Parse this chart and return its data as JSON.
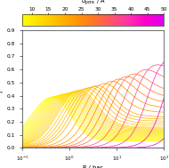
{
  "colorbar_label": "d_{pore} / Å",
  "colorbar_ticks": [
    10,
    15,
    20,
    25,
    30,
    35,
    40,
    45,
    50
  ],
  "xlabel": "P / bar",
  "ylabel": "f °",
  "xlim": [
    0.1,
    100
  ],
  "ylim": [
    0.0,
    0.9
  ],
  "yticks": [
    0.0,
    0.1,
    0.2,
    0.3,
    0.4,
    0.5,
    0.6,
    0.7,
    0.8,
    0.9
  ],
  "d_min": 7.0,
  "d_max": 50.0,
  "pore_sizes": [
    7.0,
    7.5,
    8.0,
    8.5,
    9.0,
    9.5,
    10.0,
    10.5,
    11.0,
    11.5,
    12.0,
    12.5,
    13.0,
    13.5,
    14.0,
    14.5,
    15.0,
    16.0,
    17.0,
    18.0,
    19.0,
    20.0,
    22.0,
    24.0,
    26.0,
    28.0,
    30.0,
    33.0,
    36.0,
    40.0,
    45.0,
    50.0
  ],
  "cmap_colors": [
    "#ffff00",
    "#ffdd00",
    "#ffbb00",
    "#ff9900",
    "#ff7722",
    "#ff5566",
    "#ff33aa",
    "#ff00cc",
    "#dd00ee"
  ],
  "background_color": "#ffffff"
}
